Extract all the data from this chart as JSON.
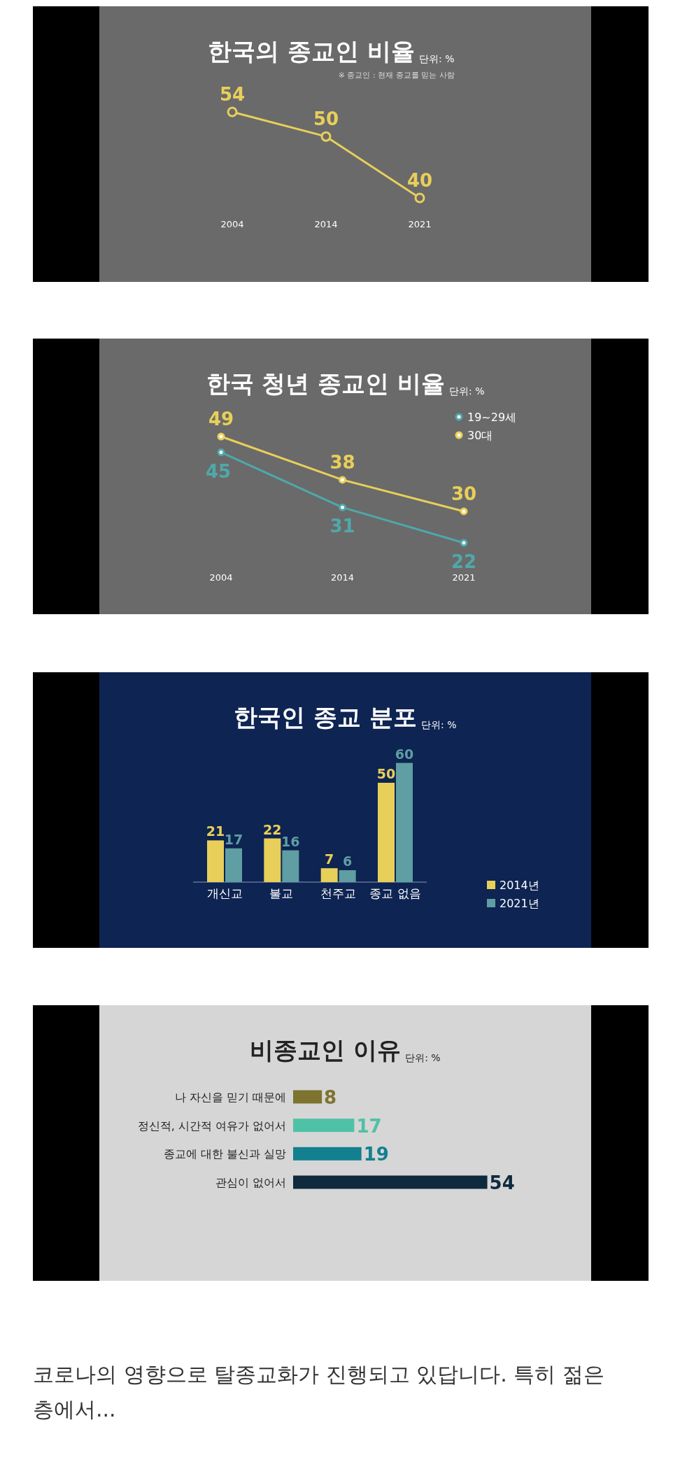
{
  "chart_data": [
    {
      "type": "line",
      "title": "한국의 종교인 비율",
      "subtitle": "단위: %",
      "annotations": [
        "※ 종교인 : 현재 종교를 믿는 사람"
      ],
      "categories": [
        "2004",
        "2014",
        "2021"
      ],
      "values": [
        54,
        50,
        40
      ],
      "color": "#e8cf5a",
      "data_labels": true,
      "marker": "circle"
    },
    {
      "type": "line",
      "title": "한국 청년 종교인 비율",
      "subtitle": "단위: %",
      "categories": [
        "2004",
        "2014",
        "2021"
      ],
      "data_labels": true,
      "marker": "circle",
      "legend": "top right",
      "series": [
        {
          "name": "19~29세",
          "color": "#4fa8aa",
          "values": [
            45,
            31,
            22
          ]
        },
        {
          "name": "30대",
          "color": "#e8cf5a",
          "values": [
            49,
            38,
            30
          ]
        }
      ]
    },
    {
      "type": "bar",
      "title": "한국인 종교 분포",
      "subtitle": "단위: %",
      "categories": [
        "개신교",
        "불교",
        "천주교",
        "종교 없음"
      ],
      "data_labels": true,
      "legend": "bottom right",
      "series": [
        {
          "name": "2014년",
          "color": "#e8cf5a",
          "values": [
            21,
            22,
            7,
            50
          ]
        },
        {
          "name": "2021년",
          "color": "#5f9ea3",
          "values": [
            17,
            16,
            6,
            60
          ]
        }
      ]
    },
    {
      "type": "bar",
      "orientation": "horizontal",
      "title": "비종교인 이유",
      "subtitle": "단위: %",
      "categories": [
        "나 자신을 믿기 때문에",
        "정신적, 시간적 여유가 없어서",
        "종교에 대한 불신과 실망",
        "관심이 없어서"
      ],
      "values": [
        8,
        17,
        19,
        54
      ],
      "colors": [
        "#7d7430",
        "#4fc1a6",
        "#13808f",
        "#0f2a3d"
      ],
      "data_labels": true
    },
    {
      "type": "other",
      "annotations": [
        "코로나의 영향으로 탈종교화가 진행되고 있답니다. 특히 젊은층에서..."
      ]
    }
  ]
}
